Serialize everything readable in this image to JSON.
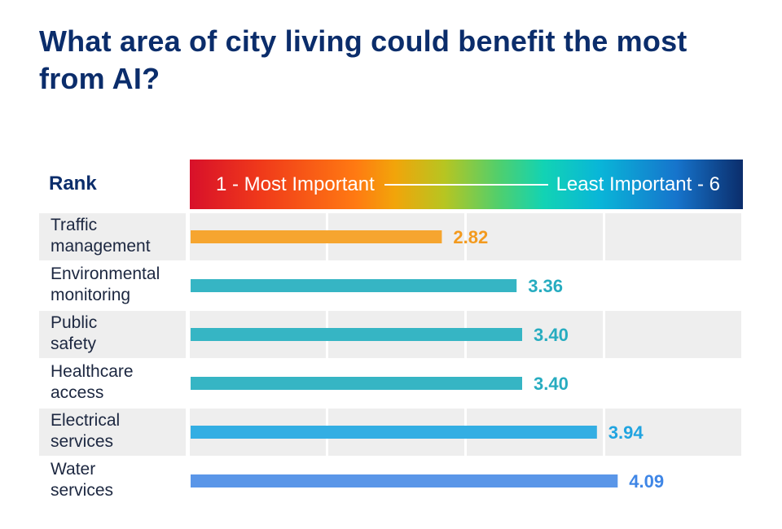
{
  "chart_data": {
    "type": "bar",
    "orientation": "horizontal",
    "title": "What area of city living could benefit the most from AI?",
    "row_header": "Rank",
    "scale_left_label": "1 - Most Important",
    "scale_right_label": "Least Important - 6",
    "xlim": [
      1,
      6
    ],
    "categories": [
      "Traffic management",
      "Environmental monitoring",
      "Public safety",
      "Healthcare access",
      "Electrical services",
      "Water services"
    ],
    "category_lines": [
      [
        "Traffic",
        "management"
      ],
      [
        "Environmental",
        "monitoring"
      ],
      [
        "Public",
        "safety"
      ],
      [
        "Healthcare",
        "access"
      ],
      [
        "Electrical",
        "services"
      ],
      [
        "Water",
        "services"
      ]
    ],
    "values": [
      2.82,
      3.36,
      3.4,
      3.4,
      3.94,
      4.09
    ],
    "value_labels": [
      "2.82",
      "3.36",
      "3.40",
      "3.40",
      "3.94",
      "4.09"
    ],
    "colors": [
      "#f6a52f",
      "#36b5c4",
      "#36b5c4",
      "#36b5c4",
      "#33aee3",
      "#5a96e8"
    ]
  }
}
